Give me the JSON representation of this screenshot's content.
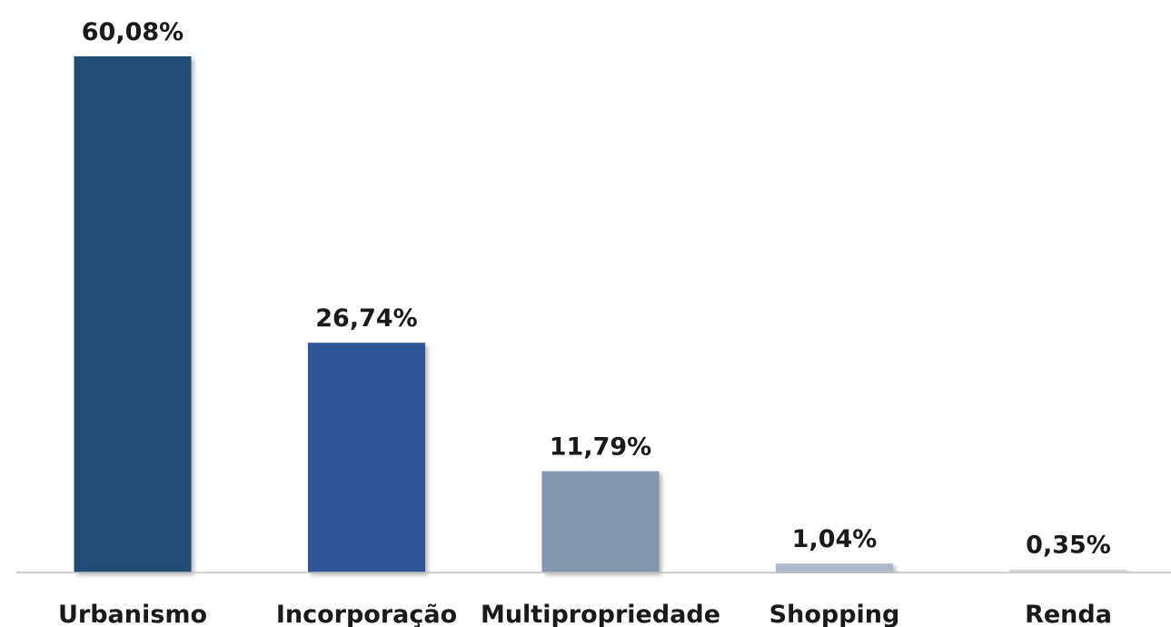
{
  "chart_data": {
    "type": "bar",
    "categories": [
      "Urbanismo",
      "Incorporação",
      "Multipropriedade",
      "Shopping",
      "Renda"
    ],
    "values": [
      60.08,
      26.74,
      11.79,
      1.04,
      0.35
    ],
    "value_labels": [
      "60,08%",
      "26,74%",
      "11,79%",
      "1,04%",
      "0,35%"
    ],
    "colors": [
      "#204e77",
      "#2f5697",
      "#8497b0",
      "#adb9ca",
      "#d9d9d9"
    ],
    "ylim": [
      0,
      60.08
    ],
    "grid": false,
    "legend": "none",
    "axis_color": "#bfbfbf"
  }
}
